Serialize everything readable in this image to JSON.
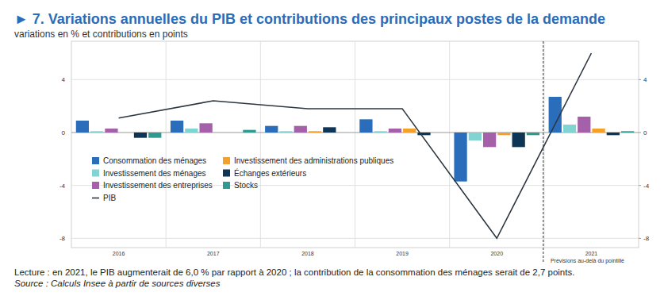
{
  "chart_data": {
    "type": "bar",
    "title": "► 7. Variations annuelles du PIB et contributions des principaux postes de la demande",
    "subtitle": "variations en % et contributions en points",
    "annotation": "Prévisions au-delà du pointillé",
    "note": "Lecture : en 2021, le PIB augmenterait de 6,0 % par rapport à 2020 ; la contribution de la consommation des ménages serait de 2,7 points.",
    "source": "Source : Calculs Insee à partir de sources diverses",
    "categories": [
      "2016",
      "2017",
      "2018",
      "2019",
      "2020",
      "2021"
    ],
    "ylim": [
      -8.7,
      6.9
    ],
    "yticks": [
      -8,
      -4,
      0,
      4
    ],
    "y2lim": [
      -8.7,
      6.9
    ],
    "y2ticks": [
      -8,
      -4,
      0,
      4
    ],
    "grid": true,
    "legend": "lower left",
    "series": [
      {
        "name": "Consommation des ménages",
        "color": "#2a6ebb",
        "values": [
          0.9,
          0.9,
          0.5,
          1.0,
          -3.7,
          2.7
        ]
      },
      {
        "name": "Investissement des ménages",
        "color": "#82d4d2",
        "values": [
          0.1,
          0.3,
          0.1,
          0.1,
          -0.6,
          0.6
        ]
      },
      {
        "name": "Investissement des entreprises",
        "color": "#a460a9",
        "values": [
          0.3,
          0.7,
          0.5,
          0.3,
          -1.1,
          1.2
        ]
      },
      {
        "name": "Investissement des administrations publiques",
        "color": "#f4a12c",
        "values": [
          0.0,
          0.0,
          0.1,
          0.3,
          -0.2,
          0.3
        ]
      },
      {
        "name": "Échanges extérieurs",
        "color": "#0f3554",
        "values": [
          -0.4,
          0.0,
          0.4,
          -0.2,
          -1.1,
          -0.2
        ]
      },
      {
        "name": "Stocks",
        "color": "#2f9a8f",
        "values": [
          -0.4,
          0.2,
          0.0,
          0.0,
          -0.2,
          0.1
        ]
      },
      {
        "name": "PIB",
        "type": "line",
        "color": "#2c3640",
        "values": [
          1.1,
          2.4,
          1.8,
          1.8,
          -8.0,
          6.0
        ]
      }
    ]
  }
}
